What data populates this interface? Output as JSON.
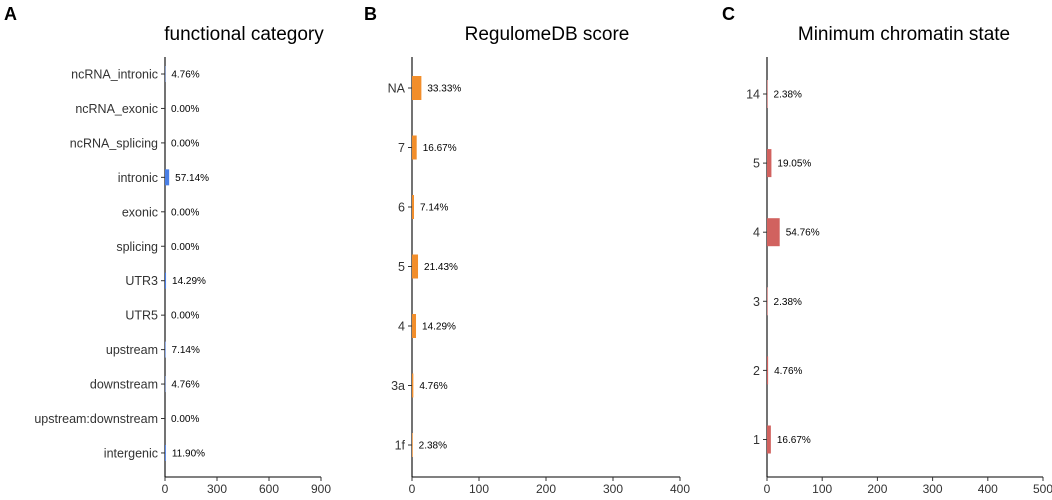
{
  "chart_data": [
    {
      "panel": "A",
      "type": "bar",
      "orientation": "horizontal",
      "title": "functional category",
      "categories": [
        "ncRNA_intronic",
        "ncRNA_exonic",
        "ncRNA_splicing",
        "intronic",
        "exonic",
        "splicing",
        "UTR3",
        "UTR5",
        "upstream",
        "downstream",
        "upstream:downstream",
        "intergenic"
      ],
      "values": [
        2,
        0,
        0,
        24,
        0,
        0,
        6,
        0,
        3,
        2,
        0,
        5
      ],
      "labels": [
        "4.76%",
        "0.00%",
        "0.00%",
        "57.14%",
        "0.00%",
        "0.00%",
        "14.29%",
        "0.00%",
        "7.14%",
        "4.76%",
        "0.00%",
        "11.90%"
      ],
      "xlim": [
        0,
        900
      ],
      "xticks": [
        "0",
        "300",
        "600",
        "900"
      ],
      "xlabel": "",
      "ylabel": "",
      "color": "#4a7fe6"
    },
    {
      "panel": "B",
      "type": "bar",
      "orientation": "horizontal",
      "title": "RegulomeDB score",
      "categories": [
        "NA",
        "7",
        "6",
        "5",
        "4",
        "3a",
        "1f"
      ],
      "values": [
        14,
        7,
        3,
        9,
        6,
        2,
        1
      ],
      "labels": [
        "33.33%",
        "16.67%",
        "7.14%",
        "21.43%",
        "14.29%",
        "4.76%",
        "2.38%"
      ],
      "xlim": [
        0,
        400
      ],
      "xticks": [
        "0",
        "100",
        "200",
        "300",
        "400"
      ],
      "xlabel": "",
      "ylabel": "",
      "color": "#f28e2b"
    },
    {
      "panel": "C",
      "type": "bar",
      "orientation": "horizontal",
      "title": "Minimum chromatin state",
      "categories": [
        "14",
        "5",
        "4",
        "3",
        "2",
        "1"
      ],
      "values": [
        1,
        8,
        23,
        1,
        2,
        7
      ],
      "labels": [
        "2.38%",
        "19.05%",
        "54.76%",
        "2.38%",
        "4.76%",
        "16.67%"
      ],
      "xlim": [
        0,
        500
      ],
      "xticks": [
        "0",
        "100",
        "200",
        "300",
        "400",
        "500"
      ],
      "xlabel": "",
      "ylabel": "",
      "color": "#d1625f"
    }
  ]
}
